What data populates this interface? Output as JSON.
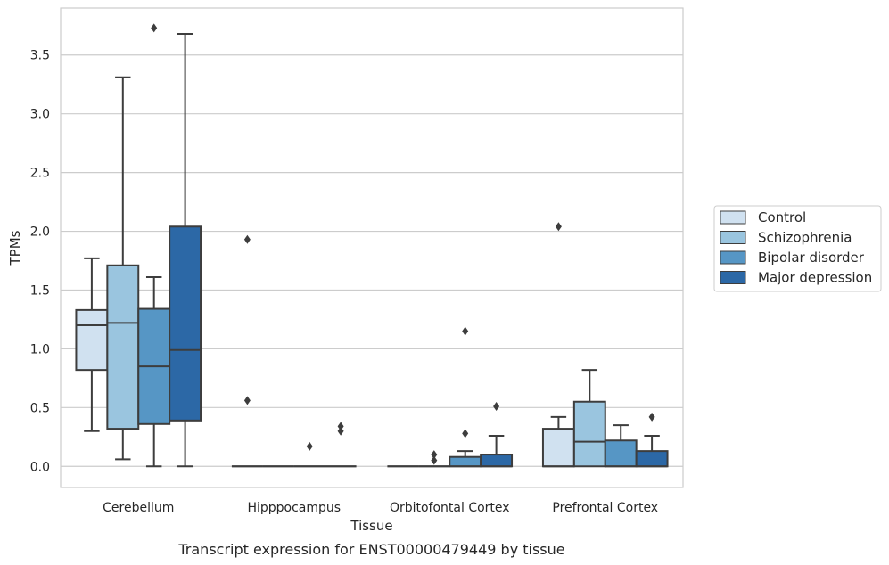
{
  "chart_data": {
    "type": "boxplot",
    "xlabel": "Tissue",
    "ylabel": "TPMs",
    "caption": "Transcript expression for ENST00000479449 by tissue",
    "ylim": [
      -0.18,
      3.9
    ],
    "yticks": [
      0.0,
      0.5,
      1.0,
      1.5,
      2.0,
      2.5,
      3.0,
      3.5
    ],
    "ytick_labels": [
      "0.0",
      "0.5",
      "1.0",
      "1.5",
      "2.0",
      "2.5",
      "3.0",
      "3.5"
    ],
    "grid": "horizontal",
    "legend_position": "right",
    "categories": [
      "Cerebellum",
      "Hipppocampus",
      "Orbitofontal Cortex",
      "Prefrontal Cortex"
    ],
    "series": [
      {
        "name": "Control",
        "color": "#d0e1f0",
        "boxes": [
          {
            "q1": 0.82,
            "median": 1.2,
            "q3": 1.33,
            "whisker_low": 0.3,
            "whisker_high": 1.77,
            "outliers": []
          },
          {
            "q1": 0.0,
            "median": 0.0,
            "q3": 0.0,
            "whisker_low": 0.0,
            "whisker_high": 0.0,
            "outliers": [
              1.93,
              0.56
            ]
          },
          {
            "q1": 0.0,
            "median": 0.0,
            "q3": 0.0,
            "whisker_low": 0.0,
            "whisker_high": 0.0,
            "outliers": []
          },
          {
            "q1": 0.0,
            "median": 0.0,
            "q3": 0.32,
            "whisker_low": 0.0,
            "whisker_high": 0.42,
            "outliers": [
              2.04
            ]
          }
        ]
      },
      {
        "name": "Schizophrenia",
        "color": "#9ac5df",
        "boxes": [
          {
            "q1": 0.32,
            "median": 1.22,
            "q3": 1.71,
            "whisker_low": 0.06,
            "whisker_high": 3.31,
            "outliers": []
          },
          {
            "q1": 0.0,
            "median": 0.0,
            "q3": 0.0,
            "whisker_low": 0.0,
            "whisker_high": 0.0,
            "outliers": []
          },
          {
            "q1": 0.0,
            "median": 0.0,
            "q3": 0.0,
            "whisker_low": 0.0,
            "whisker_high": 0.0,
            "outliers": [
              0.1,
              0.05
            ]
          },
          {
            "q1": 0.0,
            "median": 0.21,
            "q3": 0.55,
            "whisker_low": 0.0,
            "whisker_high": 0.82,
            "outliers": []
          }
        ]
      },
      {
        "name": "Bipolar disorder",
        "color": "#5696c5",
        "boxes": [
          {
            "q1": 0.36,
            "median": 0.85,
            "q3": 1.34,
            "whisker_low": 0.0,
            "whisker_high": 1.61,
            "outliers": [
              3.73
            ]
          },
          {
            "q1": 0.0,
            "median": 0.0,
            "q3": 0.0,
            "whisker_low": 0.0,
            "whisker_high": 0.0,
            "outliers": [
              0.17
            ]
          },
          {
            "q1": 0.0,
            "median": 0.0,
            "q3": 0.08,
            "whisker_low": 0.0,
            "whisker_high": 0.13,
            "outliers": [
              1.15,
              0.28
            ]
          },
          {
            "q1": 0.0,
            "median": 0.0,
            "q3": 0.22,
            "whisker_low": 0.0,
            "whisker_high": 0.35,
            "outliers": []
          }
        ]
      },
      {
        "name": "Major depression",
        "color": "#2c68a6",
        "boxes": [
          {
            "q1": 0.39,
            "median": 0.99,
            "q3": 2.04,
            "whisker_low": 0.0,
            "whisker_high": 3.68,
            "outliers": []
          },
          {
            "q1": 0.0,
            "median": 0.0,
            "q3": 0.0,
            "whisker_low": 0.0,
            "whisker_high": 0.0,
            "outliers": [
              0.34,
              0.3
            ]
          },
          {
            "q1": 0.0,
            "median": 0.0,
            "q3": 0.1,
            "whisker_low": 0.0,
            "whisker_high": 0.26,
            "outliers": [
              0.51
            ]
          },
          {
            "q1": 0.0,
            "median": 0.0,
            "q3": 0.13,
            "whisker_low": 0.0,
            "whisker_high": 0.26,
            "outliers": [
              0.42
            ]
          }
        ]
      }
    ]
  }
}
